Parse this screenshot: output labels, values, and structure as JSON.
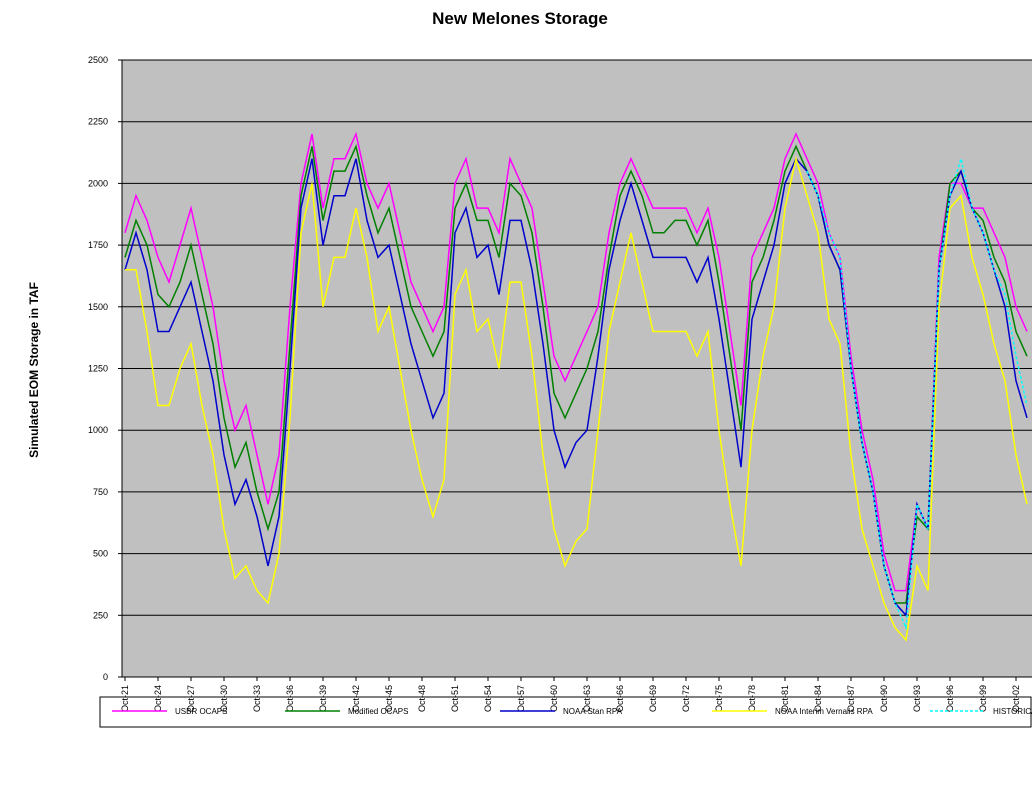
{
  "chart_data": {
    "type": "line",
    "title": "New Melones Storage",
    "y_label": "Simulated EOM Storage in TAF",
    "categories": [
      "Oct-21",
      null,
      null,
      "Oct-24",
      null,
      null,
      "Oct-27",
      null,
      null,
      "Oct-30",
      null,
      null,
      "Oct-33",
      null,
      null,
      "Oct-36",
      null,
      null,
      "Oct-39",
      null,
      null,
      "Oct-42",
      null,
      null,
      "Oct-45",
      null,
      null,
      "Oct-48",
      null,
      null,
      "Oct-51",
      null,
      null,
      "Oct-54",
      null,
      null,
      "Oct-57",
      null,
      null,
      "Oct-60",
      null,
      null,
      "Oct-63",
      null,
      null,
      "Oct-66",
      null,
      null,
      "Oct-69",
      null,
      null,
      "Oct-72",
      null,
      null,
      "Oct-75",
      null,
      null,
      "Oct-78",
      null,
      null,
      "Oct-81",
      null,
      null,
      "Oct-84",
      null,
      null,
      "Oct-87",
      null,
      null,
      "Oct-90",
      null,
      null,
      "Oct-93",
      null,
      null,
      "Oct-96",
      null,
      null,
      "Oct-99",
      null,
      null,
      "Oct-02",
      null
    ],
    "series": [
      {
        "name": "USBR OCAPS",
        "color": "#ff00ff",
        "values": [
          1800,
          1950,
          1850,
          1700,
          1600,
          1750,
          1900,
          1700,
          1500,
          1200,
          1000,
          1100,
          900,
          700,
          900,
          1500,
          2000,
          2200,
          1900,
          2100,
          2100,
          2200,
          2000,
          1900,
          2000,
          1800,
          1600,
          1500,
          1400,
          1500,
          2000,
          2100,
          1900,
          1900,
          1800,
          2100,
          2000,
          1900,
          1600,
          1300,
          1200,
          1300,
          1400,
          1500,
          1800,
          2000,
          2100,
          2000,
          1900,
          1900,
          1900,
          1900,
          1800,
          1900,
          1700,
          1400,
          1100,
          1700,
          1800,
          1900,
          2100,
          2200,
          2100,
          2000,
          1800,
          1700,
          1300,
          1000,
          800,
          500,
          350,
          350,
          700,
          600,
          1700,
          2000,
          2000,
          1900,
          1900,
          1800,
          1700,
          1500,
          1400
        ]
      },
      {
        "name": "Modified OCAPS",
        "color": "#008000",
        "values": [
          1700,
          1850,
          1750,
          1550,
          1500,
          1600,
          1750,
          1550,
          1350,
          1050,
          850,
          950,
          750,
          600,
          750,
          1350,
          1950,
          2150,
          1850,
          2050,
          2050,
          2150,
          1950,
          1800,
          1900,
          1700,
          1500,
          1400,
          1300,
          1400,
          1900,
          2000,
          1850,
          1850,
          1700,
          2000,
          1950,
          1800,
          1500,
          1150,
          1050,
          1150,
          1250,
          1400,
          1700,
          1950,
          2050,
          1950,
          1800,
          1800,
          1850,
          1850,
          1750,
          1850,
          1600,
          1300,
          1000,
          1600,
          1700,
          1850,
          2050,
          2150,
          2050,
          1950,
          1750,
          1650,
          1250,
          950,
          750,
          450,
          300,
          300,
          650,
          600,
          1650,
          2000,
          2050,
          1900,
          1850,
          1700,
          1600,
          1400,
          1300
        ]
      },
      {
        "name": "NOAA Stan RPA",
        "color": "#0000cc",
        "values": [
          1650,
          1800,
          1650,
          1400,
          1400,
          1500,
          1600,
          1400,
          1200,
          900,
          700,
          800,
          650,
          450,
          650,
          1250,
          1900,
          2100,
          1750,
          1950,
          1950,
          2100,
          1850,
          1700,
          1750,
          1550,
          1350,
          1200,
          1050,
          1150,
          1800,
          1900,
          1700,
          1750,
          1550,
          1850,
          1850,
          1650,
          1350,
          1000,
          850,
          950,
          1000,
          1300,
          1650,
          1850,
          2000,
          1850,
          1700,
          1700,
          1700,
          1700,
          1600,
          1700,
          1450,
          1150,
          850,
          1450,
          1600,
          1750,
          2000,
          2100,
          2050,
          1950,
          1750,
          1650,
          1250,
          950,
          750,
          450,
          300,
          250,
          700,
          600,
          1650,
          1950,
          2050,
          1900,
          1800,
          1650,
          1500,
          1200,
          1050
        ]
      },
      {
        "name": "NOAA Interim Vernalis RPA",
        "color": "#ffff00",
        "values": [
          1650,
          1650,
          1400,
          1100,
          1100,
          1250,
          1350,
          1100,
          900,
          600,
          400,
          450,
          350,
          300,
          500,
          1050,
          1800,
          2000,
          1500,
          1700,
          1700,
          1900,
          1700,
          1400,
          1500,
          1250,
          1000,
          800,
          650,
          800,
          1550,
          1650,
          1400,
          1450,
          1250,
          1600,
          1600,
          1300,
          900,
          600,
          450,
          550,
          600,
          1000,
          1400,
          1600,
          1800,
          1600,
          1400,
          1400,
          1400,
          1400,
          1300,
          1400,
          1000,
          700,
          450,
          1000,
          1300,
          1500,
          1900,
          2100,
          1950,
          1800,
          1450,
          1350,
          900,
          600,
          450,
          300,
          200,
          150,
          450,
          350,
          1500,
          1900,
          1950,
          1700,
          1550,
          1350,
          1200,
          900,
          700
        ]
      },
      {
        "name": "HISTORICAL",
        "color": "#00ffff",
        "dashed": true,
        "values": [
          null,
          null,
          null,
          null,
          null,
          null,
          null,
          null,
          null,
          null,
          null,
          null,
          null,
          null,
          null,
          null,
          null,
          null,
          null,
          null,
          null,
          null,
          null,
          null,
          null,
          null,
          null,
          null,
          null,
          null,
          null,
          null,
          null,
          null,
          null,
          null,
          null,
          null,
          null,
          null,
          null,
          null,
          null,
          null,
          null,
          null,
          null,
          null,
          null,
          null,
          null,
          null,
          null,
          null,
          null,
          null,
          null,
          null,
          null,
          null,
          null,
          null,
          2050,
          1950,
          1800,
          1700,
          1250,
          950,
          750,
          450,
          300,
          200,
          700,
          600,
          1650,
          1950,
          2100,
          1900,
          1800,
          1650,
          1550,
          1300,
          1100
        ]
      }
    ],
    "ylim": [
      0,
      2500
    ],
    "yticks": [
      0,
      250,
      500,
      750,
      1000,
      1250,
      1500,
      1750,
      2000,
      2250,
      2500
    ],
    "grid": true
  }
}
